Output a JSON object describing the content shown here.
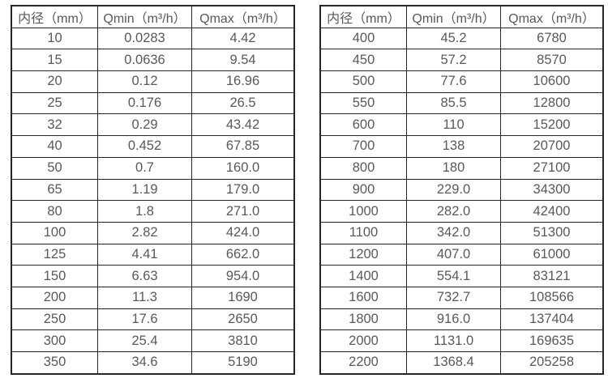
{
  "tables": [
    {
      "name": "diameter-flow-table-small",
      "headers": [
        "内径（mm）",
        "Qmin（m³/h）",
        "Qmax（m³/h）"
      ],
      "rows": [
        [
          "10",
          "0.0283",
          "4.42"
        ],
        [
          "15",
          "0.0636",
          "9.54"
        ],
        [
          "20",
          "0.12",
          "16.96"
        ],
        [
          "25",
          "0.176",
          "26.5"
        ],
        [
          "32",
          "0.29",
          "43.42"
        ],
        [
          "40",
          "0.452",
          "67.85"
        ],
        [
          "50",
          "0.7",
          "160.0"
        ],
        [
          "65",
          "1.19",
          "179.0"
        ],
        [
          "80",
          "1.8",
          "271.0"
        ],
        [
          "100",
          "2.82",
          "424.0"
        ],
        [
          "125",
          "4.41",
          "662.0"
        ],
        [
          "150",
          "6.63",
          "954.0"
        ],
        [
          "200",
          "11.3",
          "1690"
        ],
        [
          "250",
          "17.6",
          "2650"
        ],
        [
          "300",
          "25.4",
          "3810"
        ],
        [
          "350",
          "34.6",
          "5190"
        ]
      ]
    },
    {
      "name": "diameter-flow-table-large",
      "headers": [
        "内径（mm）",
        "Qmin（m³/h）",
        "Qmax（m³/h）"
      ],
      "rows": [
        [
          "400",
          "45.2",
          "6780"
        ],
        [
          "450",
          "57.2",
          "8570"
        ],
        [
          "500",
          "77.6",
          "10600"
        ],
        [
          "550",
          "85.5",
          "12800"
        ],
        [
          "600",
          "110",
          "15200"
        ],
        [
          "700",
          "138",
          "20700"
        ],
        [
          "800",
          "180",
          "27100"
        ],
        [
          "900",
          "229.0",
          "34300"
        ],
        [
          "1000",
          "282.0",
          "42400"
        ],
        [
          "1100",
          "342.0",
          "51300"
        ],
        [
          "1200",
          "407.0",
          "61000"
        ],
        [
          "1400",
          "554.1",
          "83121"
        ],
        [
          "1600",
          "732.7",
          "108566"
        ],
        [
          "1800",
          "916.0",
          "137404"
        ],
        [
          "2000",
          "1131.0",
          "169635"
        ],
        [
          "2200",
          "1368.4",
          "205258"
        ]
      ]
    }
  ],
  "colors": {
    "border": "#262626",
    "text": "#595959",
    "background": "#ffffff"
  }
}
